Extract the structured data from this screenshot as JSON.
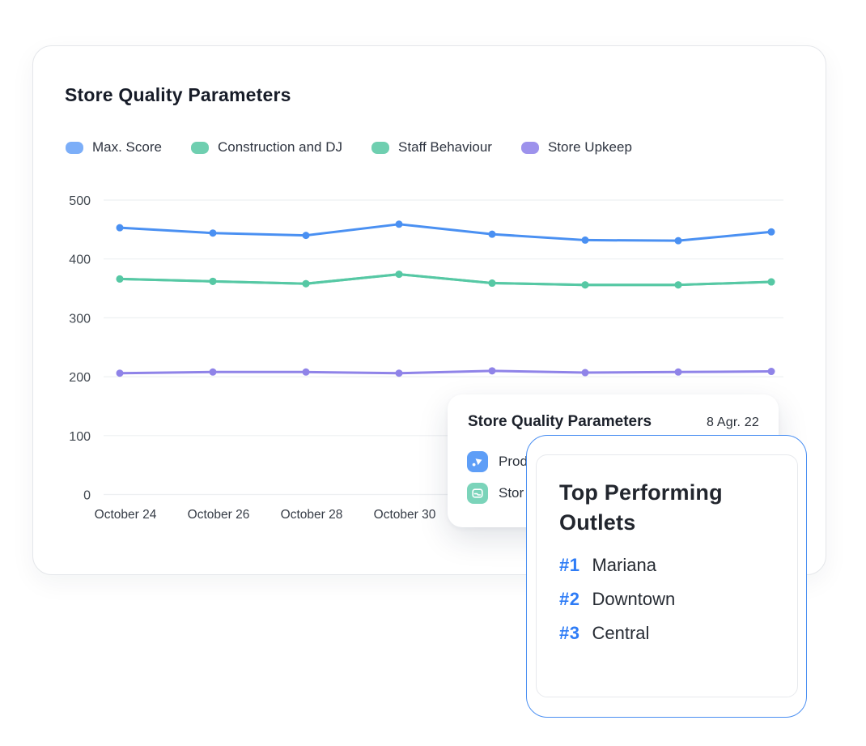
{
  "card": {
    "title": "Store Quality Parameters"
  },
  "chart_data": {
    "type": "line",
    "title": "Store Quality Parameters",
    "x_tick_labels": [
      "October 24",
      "October 26",
      "October 28",
      "October 30"
    ],
    "num_points": 8,
    "yaxis": {
      "ticks": [
        500,
        400,
        300,
        200,
        100,
        0
      ],
      "range": [
        0,
        500
      ]
    },
    "grid": "horizontal-only",
    "legend_position": "top-left",
    "series": [
      {
        "name": "Max. Score",
        "color": "#4a90f2",
        "swatch": "#7caef8",
        "values": [
          453,
          444,
          440,
          459,
          442,
          432,
          431,
          446
        ]
      },
      {
        "name": "Construction and DJ",
        "color": "#56c8a4",
        "swatch": "#6fcfb0",
        "values": [
          366,
          362,
          358,
          374,
          359,
          356,
          356,
          361
        ]
      },
      {
        "name": "Staff Behaviour",
        "color": "#56c8a4",
        "swatch": "#6fcfb0",
        "values": [
          366,
          362,
          358,
          374,
          359,
          356,
          356,
          361
        ]
      },
      {
        "name": "Store Upkeep",
        "color": "#8f83e8",
        "swatch": "#9d92ec",
        "values": [
          206,
          208,
          208,
          206,
          210,
          207,
          208,
          209
        ]
      }
    ],
    "colors": {
      "gridline": "#eef0f2",
      "tick_text": "#40474f"
    }
  },
  "tooltip": {
    "title": "Store Quality Parameters",
    "date": "8 Agr. 22",
    "rows": [
      {
        "icon": "arrow-icon",
        "label": "Prod",
        "icon_bg": "#5e9ef7"
      },
      {
        "icon": "mail-icon",
        "label": "Stor",
        "icon_bg": "#7bd4ba"
      }
    ]
  },
  "outlets": {
    "title": "Top Performing Outlets",
    "accent": "#2e7cf6",
    "items": [
      {
        "rank": "#1",
        "name": "Mariana"
      },
      {
        "rank": "#2",
        "name": "Downtown"
      },
      {
        "rank": "#3",
        "name": "Central"
      }
    ]
  }
}
